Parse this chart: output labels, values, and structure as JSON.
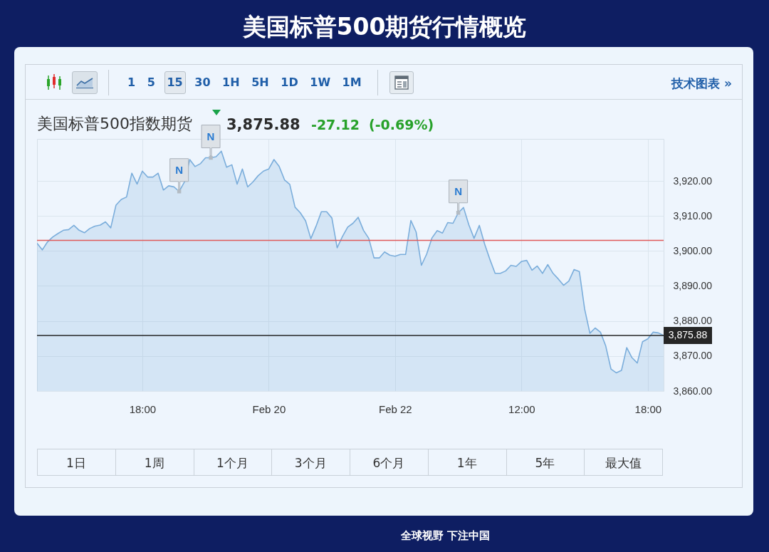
{
  "chart_data": {
    "type": "area",
    "title": "美国标普500期货行情概览",
    "subtitle": "美国标普500指数期货",
    "categories": [
      null,
      null,
      null,
      null,
      null,
      null,
      null,
      null,
      null,
      null,
      null,
      null,
      null,
      null,
      null,
      null,
      null,
      null,
      null,
      null,
      "18:00",
      null,
      null,
      null,
      null,
      null,
      null,
      null,
      null,
      null,
      null,
      null,
      null,
      null,
      null,
      null,
      null,
      null,
      null,
      null,
      null,
      null,
      null,
      null,
      "Feb 20",
      null,
      null,
      null,
      null,
      null,
      null,
      null,
      null,
      null,
      null,
      null,
      null,
      null,
      null,
      null,
      null,
      null,
      null,
      null,
      null,
      null,
      null,
      null,
      "Feb 22",
      null,
      null,
      null,
      null,
      null,
      null,
      null,
      null,
      null,
      null,
      null,
      null,
      null,
      null,
      null,
      null,
      null,
      null,
      null,
      null,
      null,
      null,
      null,
      "12:00",
      null,
      null,
      null,
      null,
      null,
      null,
      null,
      null,
      null,
      null,
      null,
      null,
      null,
      null,
      null,
      null,
      null,
      null,
      null,
      null,
      null,
      null,
      null,
      "18:00",
      null,
      null,
      null
    ],
    "series": [
      {
        "color": "#7aaddb",
        "values": [
          3902.2,
          3900.3,
          3902.6,
          3904.0,
          3905.0,
          3905.9,
          3906.1,
          3907.3,
          3905.9,
          3905.2,
          3906.4,
          3907.1,
          3907.4,
          3908.3,
          3906.6,
          3913.1,
          3914.7,
          3915.4,
          3922.2,
          3919.1,
          3922.8,
          3921.1,
          3921.1,
          3922.2,
          3917.4,
          3918.6,
          3918.3,
          3917.0,
          3919.7,
          3926.1,
          3924.1,
          3924.9,
          3926.6,
          3926.6,
          3926.9,
          3928.5,
          3923.9,
          3924.6,
          3919.1,
          3923.4,
          3918.3,
          3919.7,
          3921.5,
          3922.8,
          3923.4,
          3926.1,
          3924.1,
          3920.3,
          3919.0,
          3912.5,
          3910.9,
          3908.6,
          3903.5,
          3907.1,
          3911.2,
          3911.2,
          3909.4,
          3900.9,
          3904.1,
          3906.8,
          3907.9,
          3909.6,
          3905.9,
          3903.6,
          3898.0,
          3898.0,
          3899.7,
          3898.8,
          3898.5,
          3899.0,
          3899.0,
          3908.7,
          3905.4,
          3895.9,
          3899.1,
          3903.7,
          3905.8,
          3905.1,
          3908.1,
          3907.9,
          3910.9,
          3912.4,
          3907.5,
          3903.6,
          3907.3,
          3902.0,
          3897.6,
          3893.6,
          3893.6,
          3894.3,
          3895.9,
          3895.6,
          3897.0,
          3897.3,
          3894.5,
          3895.7,
          3893.6,
          3896.1,
          3893.6,
          3892.0,
          3890.2,
          3891.4,
          3894.7,
          3894.1,
          3883.4,
          3876.5,
          3878.0,
          3876.8,
          3872.9,
          3866.3,
          3865.2,
          3865.9,
          3872.4,
          3869.5,
          3868.0,
          3874.1,
          3874.9,
          3876.8,
          3876.6,
          3875.88
        ]
      },
      {
        "type": "scatter",
        "color": "#b3bbc3",
        "marker": "square",
        "values": [
          null,
          null,
          null,
          null,
          null,
          null,
          null,
          null,
          null,
          null,
          null,
          null,
          null,
          null,
          null,
          null,
          null,
          null,
          null,
          null,
          null,
          null,
          null,
          null,
          null,
          null,
          null,
          3917.0,
          null,
          null,
          null,
          null,
          null,
          3926.6,
          null,
          null,
          null,
          null,
          null,
          null,
          null,
          null,
          null,
          null,
          null,
          null,
          null,
          null,
          null,
          null,
          null,
          null,
          null,
          null,
          null,
          null,
          null,
          null,
          null,
          null,
          null,
          null,
          null,
          null,
          null,
          null,
          null,
          null,
          null,
          null,
          null,
          null,
          null,
          null,
          null,
          null,
          null,
          null,
          null,
          null,
          3910.9,
          null,
          null,
          null,
          null,
          null,
          null,
          null,
          null,
          null,
          null,
          null,
          null,
          null,
          null,
          null,
          null,
          null,
          null,
          null,
          null,
          null,
          null,
          null,
          null,
          null,
          null,
          null,
          null,
          null,
          null,
          null,
          null,
          null,
          null,
          null,
          null,
          null,
          null,
          null
        ],
        "value_labels": [
          null,
          null,
          null,
          null,
          null,
          null,
          null,
          null,
          null,
          null,
          null,
          null,
          null,
          null,
          null,
          null,
          null,
          null,
          null,
          null,
          null,
          null,
          null,
          null,
          null,
          null,
          null,
          "N",
          null,
          null,
          null,
          null,
          null,
          "N",
          null,
          null,
          null,
          null,
          null,
          null,
          null,
          null,
          null,
          null,
          null,
          null,
          null,
          null,
          null,
          null,
          null,
          null,
          null,
          null,
          null,
          null,
          null,
          null,
          null,
          null,
          null,
          null,
          null,
          null,
          null,
          null,
          null,
          null,
          null,
          null,
          null,
          null,
          null,
          null,
          null,
          null,
          null,
          null,
          null,
          null,
          "N",
          null,
          null,
          null,
          null,
          null,
          null,
          null,
          null,
          null,
          null,
          null,
          null,
          null,
          null,
          null,
          null,
          null,
          null,
          null,
          null,
          null,
          null,
          null,
          null,
          null,
          null,
          null,
          null,
          null,
          null,
          null,
          null,
          null,
          null,
          null,
          null,
          null,
          null,
          null
        ]
      }
    ],
    "ylim": [
      3860,
      3932
    ],
    "yticks": [
      {
        "value": 3860,
        "label": "3,860.00"
      },
      {
        "value": 3870,
        "label": "3,870.00"
      },
      {
        "value": 3880,
        "label": "3,880.00"
      },
      {
        "value": 3890,
        "label": "3,890.00"
      },
      {
        "value": 3900,
        "label": "3,900.00"
      },
      {
        "value": 3910,
        "label": "3,910.00"
      },
      {
        "value": 3920,
        "label": "3,920.00"
      }
    ],
    "grid": true,
    "ref_lines": [
      {
        "axis": "y",
        "value": 3903,
        "color": "#e05a5a"
      },
      {
        "axis": "y",
        "value": 3875.88,
        "label": "3,875.88",
        "color": "#262626"
      }
    ],
    "annotations": [
      "1 5 15 30 1H 5H 1D 1W 1M",
      "技术图表 »",
      "3,875.88",
      "-27.12",
      "(-0.69%)",
      "1日",
      "1周",
      "1个月",
      "3个月",
      "6个月",
      "1年",
      "5年",
      "最大值",
      "全球视野 下注中国"
    ]
  }
}
